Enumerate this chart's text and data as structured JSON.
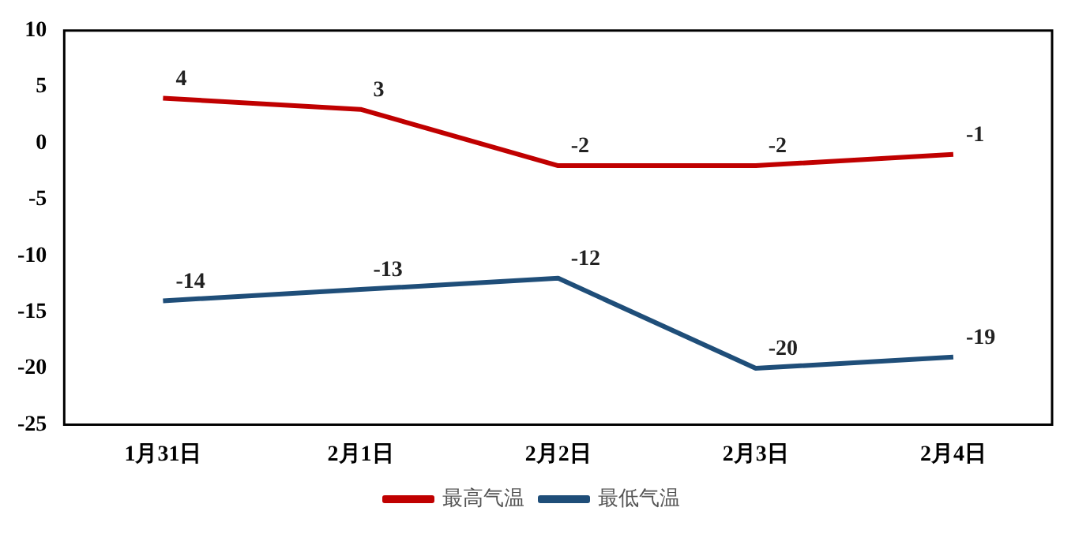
{
  "chart_data": {
    "type": "line",
    "categories": [
      "1月31日",
      "2月1日",
      "2月2日",
      "2月3日",
      "2月4日"
    ],
    "series": [
      {
        "name": "最高气温",
        "color": "#c00000",
        "values": [
          4,
          3,
          -2,
          -2,
          -1
        ]
      },
      {
        "name": "最低气温",
        "color": "#1f4e79",
        "values": [
          -14,
          -13,
          -12,
          -20,
          -19
        ]
      }
    ],
    "ylim": [
      -25,
      10
    ],
    "yticks": [
      -25,
      -20,
      -15,
      -10,
      -5,
      0,
      5,
      10
    ],
    "grid": false,
    "legend": "bottom",
    "data_labels": true,
    "marker": "none"
  }
}
